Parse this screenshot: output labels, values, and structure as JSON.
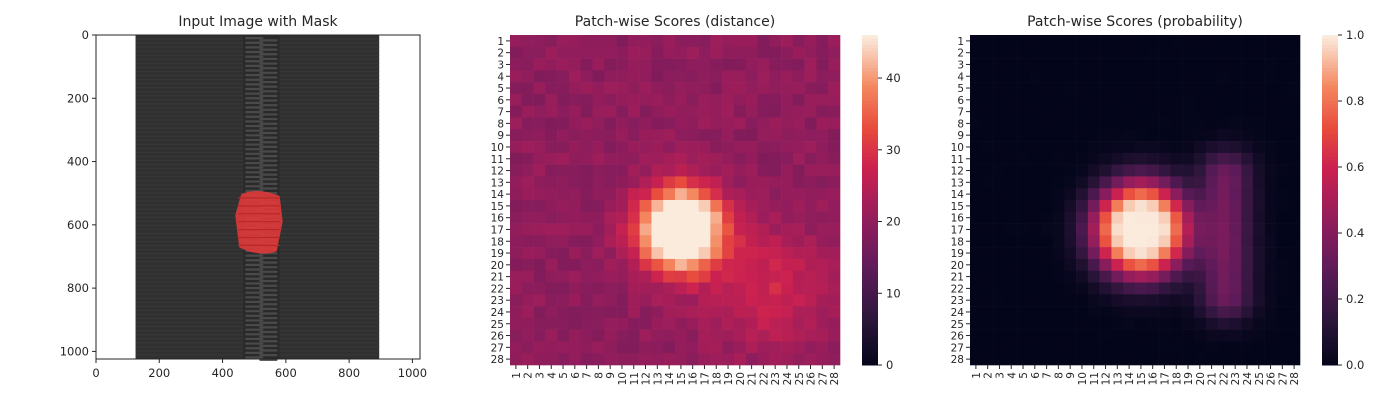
{
  "chart_data": [
    {
      "type": "image",
      "title": "Input Image with Mask",
      "xlim": [
        0,
        1024
      ],
      "ylim": [
        1024,
        0
      ],
      "xticks": [
        "0",
        "200",
        "400",
        "600",
        "800",
        "1000"
      ],
      "yticks": [
        "0",
        "200",
        "400",
        "600",
        "800",
        "1000"
      ],
      "image": {
        "background_color": "#ffffff",
        "fabric_color": "#303030",
        "fabric_x_range": [
          125,
          895
        ],
        "teeth_color": "#4a4a4a",
        "teeth_x_range": [
          465,
          580
        ],
        "mask_color": "#e03a3a",
        "mask_region": {
          "x": [
            440,
            590
          ],
          "y": [
            490,
            690
          ]
        }
      }
    },
    {
      "type": "heatmap",
      "title": "Patch-wise Scores (distance)",
      "grid_size": 28,
      "xticklabels": [
        "1",
        "2",
        "3",
        "4",
        "5",
        "6",
        "7",
        "8",
        "9",
        "10",
        "11",
        "12",
        "13",
        "14",
        "15",
        "16",
        "17",
        "18",
        "19",
        "20",
        "21",
        "22",
        "23",
        "24",
        "25",
        "26",
        "27",
        "28"
      ],
      "yticklabels": [
        "1",
        "2",
        "3",
        "4",
        "5",
        "6",
        "7",
        "8",
        "9",
        "10",
        "11",
        "12",
        "13",
        "14",
        "15",
        "16",
        "17",
        "18",
        "19",
        "20",
        "21",
        "22",
        "23",
        "24",
        "25",
        "26",
        "27",
        "28"
      ],
      "colormap": "rocket",
      "vmin": 0,
      "vmax": 46,
      "colorbar_ticks": [
        "0",
        "10",
        "20",
        "30",
        "40"
      ],
      "background_value": 20,
      "blobs": [
        {
          "center_col": 15,
          "center_row": 17,
          "peak": 46,
          "sigma": 2.4
        },
        {
          "center_col": 22.5,
          "center_row": 22,
          "peak": 8,
          "sigma": 3.5
        }
      ]
    },
    {
      "type": "heatmap",
      "title": "Patch-wise Scores (probability)",
      "grid_size": 28,
      "xticklabels": [
        "1",
        "2",
        "3",
        "4",
        "5",
        "6",
        "7",
        "8",
        "9",
        "10",
        "11",
        "12",
        "13",
        "14",
        "15",
        "16",
        "17",
        "18",
        "19",
        "20",
        "21",
        "22",
        "23",
        "24",
        "25",
        "26",
        "27",
        "28"
      ],
      "yticklabels": [
        "1",
        "2",
        "3",
        "4",
        "5",
        "6",
        "7",
        "8",
        "9",
        "10",
        "11",
        "12",
        "13",
        "14",
        "15",
        "16",
        "17",
        "18",
        "19",
        "20",
        "21",
        "22",
        "23",
        "24",
        "25",
        "26",
        "27",
        "28"
      ],
      "colormap": "rocket",
      "vmin": 0.0,
      "vmax": 1.0,
      "colorbar_ticks": [
        "0.0",
        "0.2",
        "0.4",
        "0.6",
        "0.8",
        "1.0"
      ],
      "background_value": 0.0,
      "blobs": [
        {
          "center_col": 15,
          "center_row": 17,
          "peak": 1.0,
          "sigma": 2.0,
          "plateau": 1.6
        },
        {
          "center_col": 22.2,
          "center_row": 17.5,
          "peak": 0.35,
          "sigma": 1.6,
          "spread_rows": 5
        }
      ]
    }
  ]
}
